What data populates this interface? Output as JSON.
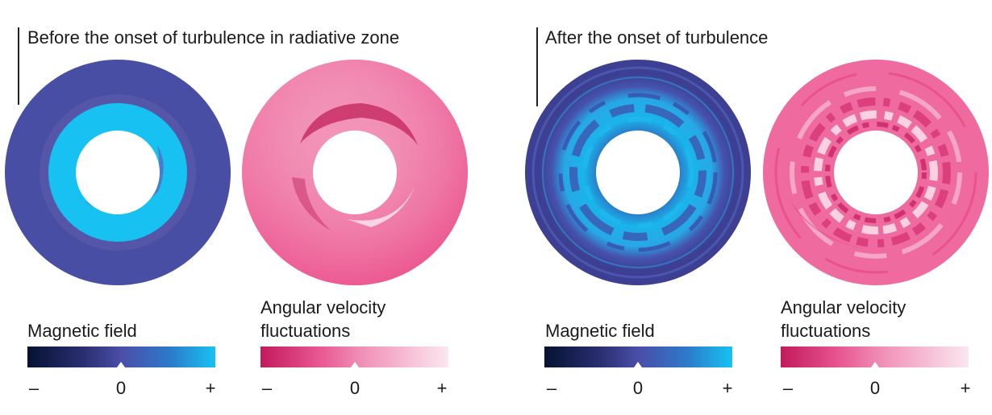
{
  "panels": [
    {
      "title": "Before the onset of turbulence in radiative zone",
      "magnetic": {
        "label": "Magnetic field",
        "ticks": {
          "minus": "–",
          "zero": "0",
          "plus": "+"
        }
      },
      "velocity": {
        "label_line1": "Angular velocity",
        "label_line2": "fluctuations",
        "ticks": {
          "minus": "–",
          "zero": "0",
          "plus": "+"
        }
      }
    },
    {
      "title": "After the onset of turbulence",
      "magnetic": {
        "label": "Magnetic field",
        "ticks": {
          "minus": "–",
          "zero": "0",
          "plus": "+"
        }
      },
      "velocity": {
        "label_line1": "Angular velocity",
        "label_line2": "fluctuations",
        "ticks": {
          "minus": "–",
          "zero": "0",
          "plus": "+"
        }
      }
    }
  ],
  "colors": {
    "magnetic_scale": [
      "#061233",
      "#3a3f8f",
      "#4b4ea8",
      "#2d78c9",
      "#16c2f2"
    ],
    "velocity_scale": [
      "#c31a5c",
      "#e75490",
      "#f192b8",
      "#fbe7ef"
    ],
    "magnetic_base": "#474ea3",
    "magnetic_bright": "#17c1f1",
    "velocity_base": "#ef6a9e"
  }
}
